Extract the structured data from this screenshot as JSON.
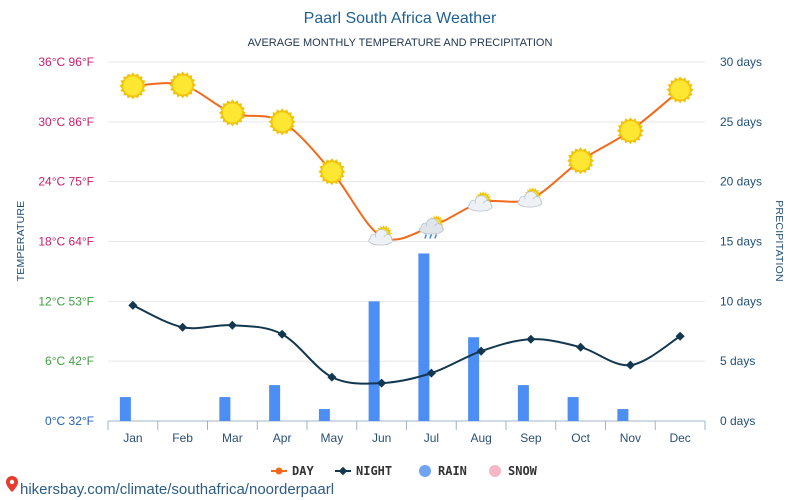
{
  "page": {
    "title": "Paarl South Africa Weather",
    "subtitle": "AVERAGE MONTHLY TEMPERATURE AND PRECIPITATION",
    "watermark": "hikersbay.com/climate/southafrica/noorderpaarl"
  },
  "chart_data": {
    "type": "line",
    "title": "Paarl South Africa Weather",
    "subtitle": "AVERAGE MONTHLY TEMPERATURE AND PRECIPITATION",
    "categories": [
      "Jan",
      "Feb",
      "Mar",
      "Apr",
      "May",
      "Jun",
      "Jul",
      "Aug",
      "Sep",
      "Oct",
      "Nov",
      "Dec"
    ],
    "ylabel_left": "TEMPERATURE",
    "ylabel_right": "PRECIPITATION",
    "ylim_left": [
      0,
      36
    ],
    "ylim_right": [
      0,
      30
    ],
    "left_ticks": [
      {
        "value": 0,
        "label": "0°C 32°F",
        "color": "#1f5fbf"
      },
      {
        "value": 6,
        "label": "6°C 42°F",
        "color": "#3f9f3f"
      },
      {
        "value": 12,
        "label": "12°C 53°F",
        "color": "#3f9f3f"
      },
      {
        "value": 18,
        "label": "18°C 64°F",
        "color": "#cc1d6a"
      },
      {
        "value": 24,
        "label": "24°C 75°F",
        "color": "#cc1d6a"
      },
      {
        "value": 30,
        "label": "30°C 86°F",
        "color": "#cc1d6a"
      },
      {
        "value": 36,
        "label": "36°C 96°F",
        "color": "#cc1d6a"
      }
    ],
    "right_ticks": [
      {
        "value": 0,
        "label": "0 days"
      },
      {
        "value": 5,
        "label": "5 days"
      },
      {
        "value": 10,
        "label": "10 days"
      },
      {
        "value": 15,
        "label": "15 days"
      },
      {
        "value": 20,
        "label": "20 days"
      },
      {
        "value": 25,
        "label": "25 days"
      },
      {
        "value": 30,
        "label": "30 days"
      }
    ],
    "grid": true,
    "legend_position": "bottom",
    "series": [
      {
        "name": "DAY",
        "type": "line",
        "axis": "left",
        "color": "#f26a1b",
        "values": [
          33.6,
          33.7,
          30.9,
          30.0,
          25.0,
          18.5,
          19.5,
          21.9,
          22.3,
          26.1,
          29.1,
          33.2
        ],
        "icons": [
          "sun",
          "sun",
          "sun",
          "sun",
          "sun",
          "partly-cloudy",
          "cloud-rain",
          "partly-cloudy",
          "partly-cloudy",
          "sun",
          "sun",
          "sun"
        ]
      },
      {
        "name": "NIGHT",
        "type": "line",
        "axis": "left",
        "color": "#12374f",
        "values": [
          11.6,
          9.4,
          9.6,
          8.7,
          4.4,
          3.8,
          4.8,
          7.0,
          8.2,
          7.4,
          5.6,
          8.5
        ]
      },
      {
        "name": "RAIN",
        "type": "bar",
        "axis": "right",
        "color": "#4d8ef5",
        "values": [
          2,
          0,
          2,
          3,
          1,
          10,
          14,
          7,
          3,
          2,
          1,
          0
        ]
      },
      {
        "name": "SNOW",
        "type": "bar",
        "axis": "right",
        "color": "#f7b6c6",
        "values": [
          0,
          0,
          0,
          0,
          0,
          0,
          0,
          0,
          0,
          0,
          0,
          0
        ]
      }
    ]
  }
}
